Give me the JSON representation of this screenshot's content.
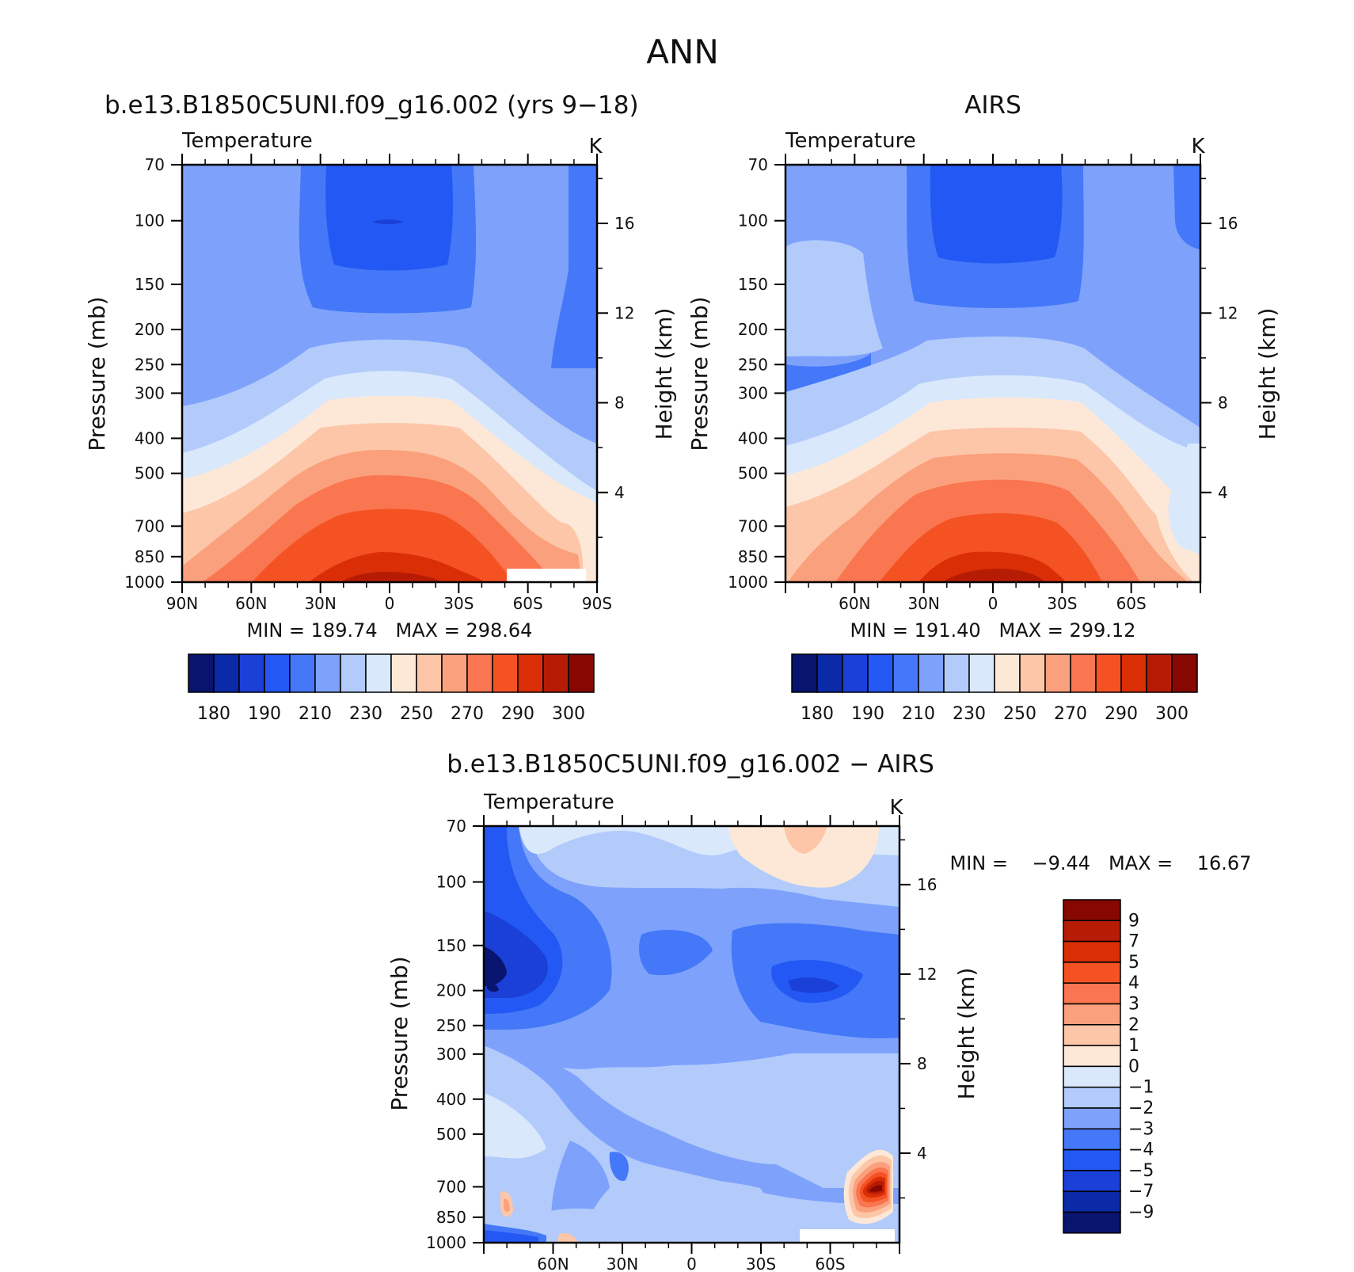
{
  "title": "ANN",
  "chart_data": [
    {
      "type": "heatmap",
      "subtype": "filled-contour",
      "title": "b.e13.B1850C5UNI.f09_g16.002 (yrs 9−18)",
      "left_string": "Temperature",
      "units": "K",
      "ylabel": "Pressure (mb)",
      "ylabel_right": "Height (km)",
      "x_ticks": [
        "90N",
        "60N",
        "30N",
        "0",
        "30S",
        "60S",
        "90S"
      ],
      "y_ticks": [
        "70",
        "100",
        "150",
        "200",
        "250",
        "300",
        "400",
        "500",
        "700",
        "850",
        "1000"
      ],
      "y_right_ticks": [
        "16",
        "12",
        "8",
        "4"
      ],
      "min_max": "MIN = 189.74   MAX = 298.64",
      "min": 189.74,
      "max": 298.64,
      "colorbar_labels": [
        "180",
        "190",
        "210",
        "230",
        "250",
        "270",
        "290",
        "300"
      ]
    },
    {
      "type": "heatmap",
      "subtype": "filled-contour",
      "title": "AIRS",
      "left_string": "Temperature",
      "units": "K",
      "ylabel": "Pressure (mb)",
      "ylabel_right": "Height (km)",
      "x_ticks": [
        "60N",
        "30N",
        "0",
        "30S",
        "60S"
      ],
      "y_ticks": [
        "70",
        "100",
        "150",
        "200",
        "250",
        "300",
        "400",
        "500",
        "700",
        "850",
        "1000"
      ],
      "y_right_ticks": [
        "16",
        "12",
        "8",
        "4"
      ],
      "min_max": "MIN = 191.40   MAX = 299.12",
      "min": 191.4,
      "max": 299.12,
      "colorbar_labels": [
        "180",
        "190",
        "210",
        "230",
        "250",
        "270",
        "290",
        "300"
      ]
    },
    {
      "type": "heatmap",
      "subtype": "filled-contour",
      "title": "b.e13.B1850C5UNI.f09_g16.002 − AIRS",
      "left_string": "Temperature",
      "units": "K",
      "ylabel": "Pressure (mb)",
      "ylabel_right": "Height (km)",
      "x_ticks": [
        "60N",
        "30N",
        "0",
        "30S",
        "60S"
      ],
      "y_ticks": [
        "70",
        "100",
        "150",
        "200",
        "250",
        "300",
        "400",
        "500",
        "700",
        "850",
        "1000"
      ],
      "y_right_ticks": [
        "16",
        "12",
        "8",
        "4"
      ],
      "min_max": "MIN =    −9.44   MAX =    16.67",
      "min": -9.44,
      "max": 16.67,
      "colorbar_labels": [
        "9",
        "7",
        "5",
        "4",
        "3",
        "2",
        "1",
        "0",
        "−1",
        "−2",
        "−3",
        "−4",
        "−5",
        "−7",
        "−9"
      ]
    }
  ],
  "colors": {
    "temp_scale": [
      "#08146e",
      "#0a2aa8",
      "#1a40d8",
      "#2458f4",
      "#4478f8",
      "#7ea2fb",
      "#b2cbfb",
      "#d9e8fb",
      "#fde8d8",
      "#fdc6a8",
      "#fba07c",
      "#f97650",
      "#f55224",
      "#d92e06",
      "#b61c04",
      "#870802"
    ],
    "diff_scale": [
      "#870802",
      "#b61c04",
      "#d92e06",
      "#f55224",
      "#f97650",
      "#fba07c",
      "#fdc6a8",
      "#fde8d8",
      "#d9e8fb",
      "#b2cbfb",
      "#7ea2fb",
      "#4478f8",
      "#2458f4",
      "#1a40d8",
      "#0a2aa8",
      "#08146e"
    ]
  }
}
